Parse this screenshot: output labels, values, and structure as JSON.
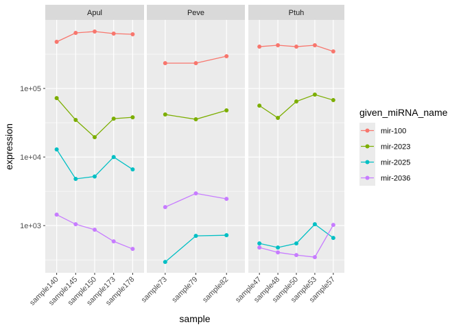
{
  "chart_data": {
    "type": "line",
    "facet_var": "species",
    "xlabel": "sample",
    "ylabel": "expression",
    "y_scale": "log10",
    "ylim": [
      205,
      1000000
    ],
    "y_ticks": [
      {
        "value": 100000,
        "label": "1e+05"
      },
      {
        "value": 10000,
        "label": "1e+04"
      },
      {
        "value": 1000,
        "label": "1e+03"
      }
    ],
    "legend": {
      "title": "given_miRNA_name",
      "position": "right",
      "entries": [
        {
          "name": "mir-100",
          "color": "#F8766D"
        },
        {
          "name": "mir-2023",
          "color": "#7CAE00"
        },
        {
          "name": "mir-2025",
          "color": "#00BFC4"
        },
        {
          "name": "mir-2036",
          "color": "#C77CFF"
        }
      ]
    },
    "panels": [
      {
        "title": "Apul",
        "categories": [
          "sample140",
          "sample145",
          "sample150",
          "sample173",
          "sample178"
        ],
        "series": [
          {
            "name": "mir-100",
            "values": [
              479000,
              646000,
              676000,
              631000,
              617000
            ]
          },
          {
            "name": "mir-2023",
            "values": [
              72400,
              34700,
              19500,
              36300,
              38000
            ]
          },
          {
            "name": "mir-2025",
            "values": [
              12900,
              4800,
              5200,
              10000,
              6600
            ]
          },
          {
            "name": "mir-2036",
            "values": [
              1445,
              1047,
              871,
              589,
              457
            ]
          }
        ]
      },
      {
        "title": "Peve",
        "categories": [
          "sample73",
          "sample79",
          "sample82"
        ],
        "series": [
          {
            "name": "mir-100",
            "values": [
              234000,
              234000,
              295000
            ]
          },
          {
            "name": "mir-2023",
            "values": [
              41700,
              35500,
              47900
            ]
          },
          {
            "name": "mir-2025",
            "values": [
              295,
              708,
              724
            ]
          },
          {
            "name": "mir-2036",
            "values": [
              1862,
              2951,
              2455
            ]
          }
        ]
      },
      {
        "title": "Ptuh",
        "categories": [
          "sample47",
          "sample48",
          "sample50",
          "sample53",
          "sample57"
        ],
        "series": [
          {
            "name": "mir-100",
            "values": [
              407000,
              427000,
              407000,
              427000,
              347000
            ]
          },
          {
            "name": "mir-2023",
            "values": [
              56200,
              37200,
              64600,
              81300,
              67600
            ]
          },
          {
            "name": "mir-2025",
            "values": [
              550,
              479,
              550,
              1047,
              661
            ]
          },
          {
            "name": "mir-2036",
            "values": [
              479,
              407,
              372,
              347,
              1023
            ]
          }
        ]
      }
    ]
  }
}
